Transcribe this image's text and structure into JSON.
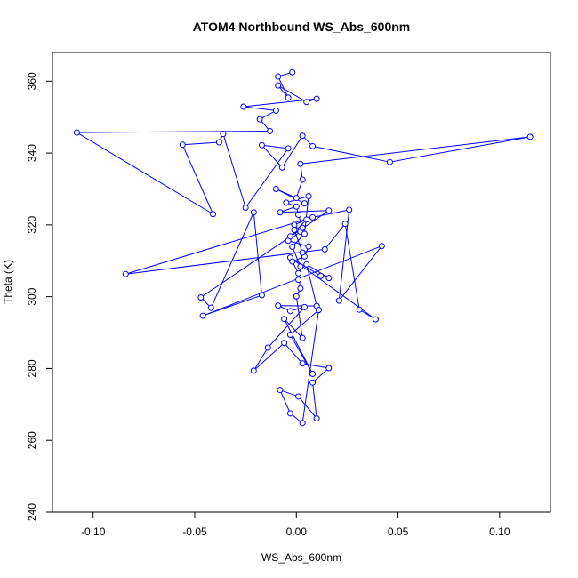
{
  "chart_data": {
    "type": "line",
    "title": "ATOM4 Northbound WS_Abs_600nm",
    "xlabel": "WS_Abs_600nm",
    "ylabel": "Theta (K)",
    "xlim": [
      -0.12,
      0.125
    ],
    "ylim": [
      240,
      368
    ],
    "xticks": [
      -0.1,
      -0.05,
      0.0,
      0.05,
      0.1
    ],
    "xtick_labels": [
      "-0.10",
      "-0.05",
      "0.00",
      "0.05",
      "0.10"
    ],
    "yticks": [
      240,
      260,
      280,
      300,
      320,
      340,
      360
    ],
    "ytick_labels": [
      "240",
      "260",
      "280",
      "300",
      "320",
      "340",
      "360"
    ],
    "grid": false,
    "markers": "open-circle",
    "color": "#0000ff",
    "series": [
      {
        "x": [
          -0.002,
          -0.009,
          -0.004,
          -0.009,
          0.005,
          0.01,
          -0.026,
          -0.01,
          -0.018,
          -0.013,
          -0.108,
          -0.041,
          -0.056,
          -0.038,
          -0.036,
          -0.025,
          -0.004,
          -0.017,
          -0.007,
          0.003,
          0.008,
          0.046,
          0.115,
          0.002,
          0.003,
          0.0,
          -0.01,
          0.004,
          -0.008,
          0.016,
          -0.047,
          -0.042,
          -0.021,
          -0.017,
          -0.046,
          0.042,
          0.021,
          0.026,
          0.008,
          -0.084,
          0.014,
          0.024,
          0.031,
          0.039,
          -0.003,
          0.012,
          0.016,
          0.005,
          0.01,
          -0.009,
          -0.003,
          0.004,
          -0.014,
          -0.021,
          -0.006,
          0.003,
          0.016,
          0.008,
          0.01,
          0.001,
          -0.008,
          -0.003,
          0.003,
          0.011,
          -0.003,
          0.008,
          -0.006,
          0.003,
          0.0,
          0.002,
          0.001,
          -0.002,
          0.004,
          0.006,
          -0.004,
          0.002,
          -0.001,
          0.005,
          -0.003,
          0.003,
          0.001,
          0.0,
          -0.005,
          0.006,
          0.004,
          -0.002,
          0.002,
          0.001,
          0.003,
          -0.001
        ],
        "y": [
          362.5,
          361.3,
          355.4,
          358.8,
          354.2,
          355.1,
          352.9,
          351.8,
          349.4,
          346.1,
          345.7,
          323.0,
          342.3,
          343.0,
          345.3,
          324.8,
          341.3,
          342.2,
          336.0,
          344.8,
          341.9,
          337.5,
          344.5,
          337.0,
          332.6,
          327.5,
          330.0,
          326.0,
          323.5,
          324.0,
          299.8,
          296.9,
          323.5,
          300.4,
          294.7,
          314.1,
          298.9,
          324.2,
          322.1,
          306.3,
          313.2,
          320.3,
          296.4,
          293.7,
          310.9,
          305.8,
          305.2,
          309.0,
          297.4,
          297.5,
          296.0,
          297.1,
          285.8,
          279.4,
          287.1,
          281.4,
          280.1,
          276.1,
          266.1,
          272.2,
          274.0,
          267.5,
          264.8,
          296.3,
          289.4,
          278.5,
          293.8,
          288.5,
          300.1,
          302.3,
          306.5,
          309.8,
          311.2,
          314.0,
          315.6,
          318.1,
          320.0,
          321.5,
          316.8,
          319.2,
          322.8,
          325.1,
          326.2,
          328.0,
          317.5,
          313.9,
          308.4,
          304.7,
          312.3,
          318.6
        ]
      }
    ]
  }
}
